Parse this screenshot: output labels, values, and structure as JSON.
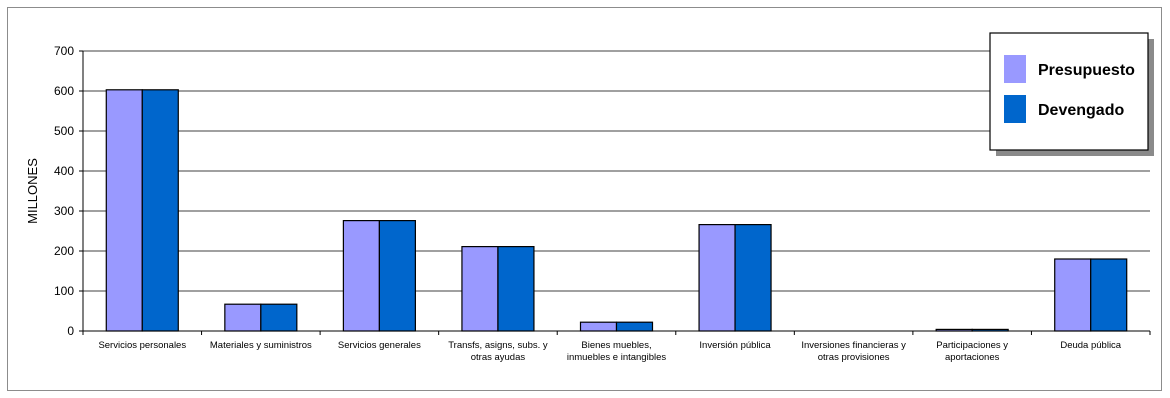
{
  "chart_data": {
    "type": "bar",
    "ylabel": "MILLONES",
    "ylim": [
      0,
      700
    ],
    "yticks": [
      0,
      100,
      200,
      300,
      400,
      500,
      600,
      700
    ],
    "grid": true,
    "legend_position": "top-right",
    "categories": [
      [
        "Servicios personales"
      ],
      [
        "Materiales y suministros"
      ],
      [
        "Servicios generales"
      ],
      [
        "Transfs, asigns, subs. y",
        "otras ayudas"
      ],
      [
        "Bienes muebles,",
        "inmuebles e intangibles"
      ],
      [
        "Inversión pública"
      ],
      [
        "Inversiones financieras y",
        "otras provisiones"
      ],
      [
        "Participaciones y",
        "aportaciones"
      ],
      [
        "Deuda pública"
      ]
    ],
    "series": [
      {
        "name": "Presupuesto",
        "color": "#9999ff",
        "values": [
          603,
          67,
          276,
          211,
          22,
          266,
          0,
          4,
          180
        ]
      },
      {
        "name": "Devengado",
        "color": "#0066cc",
        "values": [
          603,
          67,
          276,
          211,
          22,
          266,
          0,
          4,
          180
        ]
      }
    ]
  }
}
